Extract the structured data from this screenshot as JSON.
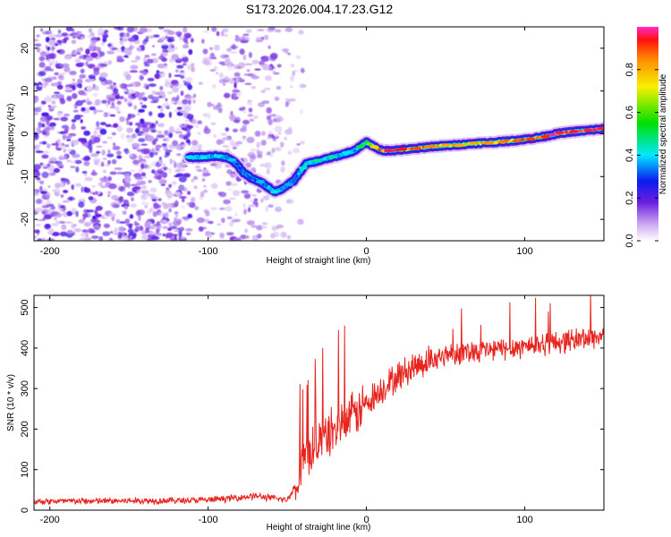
{
  "title": "S173.2026.004.17.23.G12",
  "chart_data": [
    {
      "type": "heatmap",
      "xlabel": "Height of straight line (km)",
      "ylabel": "Frequency (Hz)",
      "xlim": [
        -210,
        150
      ],
      "ylim": [
        -25,
        25
      ],
      "xticks": [
        -200,
        -100,
        0,
        100
      ],
      "yticks": [
        -20,
        -10,
        0,
        10,
        20
      ],
      "colorbar": {
        "label": "Normalized spectral amplitude",
        "range": [
          0,
          1
        ],
        "ticks": [
          "0.0",
          "0.2",
          "0.4",
          "0.6",
          "0.8"
        ]
      },
      "ridge": {
        "x": [
          -112,
          -105,
          -95,
          -88,
          -82,
          -78,
          -72,
          -66,
          -62,
          -58,
          -54,
          -50,
          -46,
          -42,
          -38,
          -30,
          -22,
          -15,
          -8,
          -4,
          0,
          5,
          10,
          20,
          30,
          40,
          50,
          60,
          70,
          80,
          90,
          100,
          110,
          120,
          130,
          140,
          150
        ],
        "y": [
          -5.5,
          -5.5,
          -5.2,
          -5.5,
          -7,
          -9,
          -10.5,
          -11.5,
          -12.5,
          -13.5,
          -13,
          -12,
          -11,
          -9,
          -7,
          -6.3,
          -5.5,
          -4.8,
          -4,
          -3,
          -2,
          -3,
          -4,
          -3.8,
          -3.5,
          -3,
          -2.8,
          -2.5,
          -2.2,
          -2,
          -1.7,
          -1.3,
          -0.8,
          0,
          0.5,
          0.8,
          1.2
        ],
        "amplitude": [
          0.35,
          0.35,
          0.35,
          0.35,
          0.3,
          0.3,
          0.3,
          0.32,
          0.35,
          0.35,
          0.35,
          0.3,
          0.32,
          0.35,
          0.4,
          0.4,
          0.4,
          0.35,
          0.35,
          0.45,
          0.55,
          0.7,
          0.9,
          0.9,
          0.85,
          0.8,
          0.75,
          0.75,
          0.75,
          0.8,
          0.8,
          0.85,
          0.85,
          0.9,
          0.9,
          0.9,
          0.9
        ]
      }
    },
    {
      "type": "line",
      "xlabel": "Height of straight line (km)",
      "ylabel": "SNR (10 * v/v)",
      "xlim": [
        -210,
        150
      ],
      "ylim": [
        0,
        530
      ],
      "xticks": [
        -200,
        -100,
        0,
        100
      ],
      "yticks": [
        0,
        100,
        200,
        300,
        400,
        500
      ],
      "series_color": "#e8241f",
      "x": [
        -210,
        -180,
        -150,
        -120,
        -100,
        -90,
        -80,
        -70,
        -60,
        -50,
        -45,
        -40,
        -35,
        -30,
        -25,
        -20,
        -15,
        -10,
        -5,
        0,
        10,
        20,
        30,
        40,
        50,
        60,
        70,
        80,
        90,
        100,
        110,
        120,
        130,
        140,
        150
      ],
      "y": [
        22,
        22,
        23,
        24,
        25,
        28,
        32,
        35,
        30,
        25,
        60,
        120,
        150,
        170,
        185,
        200,
        215,
        225,
        245,
        265,
        300,
        330,
        355,
        370,
        385,
        390,
        395,
        395,
        400,
        405,
        410,
        415,
        420,
        425,
        430
      ]
    }
  ]
}
